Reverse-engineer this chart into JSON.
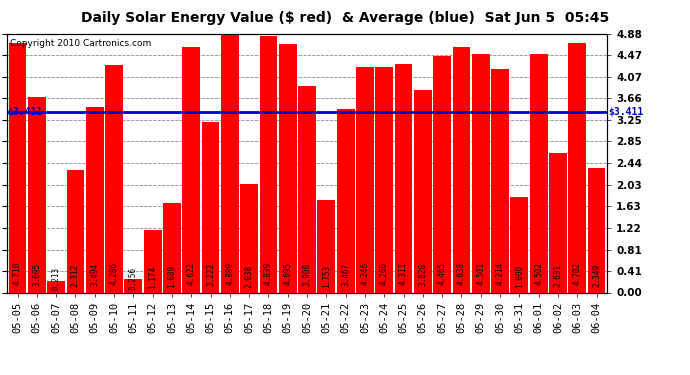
{
  "title": "Daily Solar Energy Value ($ red)  & Average (blue)  Sat Jun 5  05:45",
  "copyright": "Copyright 2010 Cartronics.com",
  "average": 3.411,
  "average_label": "$3.411",
  "categories": [
    "05-05",
    "05-06",
    "05-07",
    "05-08",
    "05-09",
    "05-10",
    "05-11",
    "05-12",
    "05-13",
    "05-14",
    "05-15",
    "05-16",
    "05-17",
    "05-18",
    "05-19",
    "05-20",
    "05-21",
    "05-22",
    "05-23",
    "05-24",
    "05-25",
    "05-26",
    "05-27",
    "05-28",
    "05-29",
    "05-30",
    "05-31",
    "06-01",
    "06-02",
    "06-03",
    "06-04"
  ],
  "values": [
    4.71,
    3.695,
    0.213,
    2.312,
    3.494,
    4.286,
    0.256,
    1.174,
    1.689,
    4.622,
    3.222,
    4.88,
    2.038,
    4.839,
    4.695,
    3.9,
    1.753,
    3.467,
    4.246,
    4.26,
    4.311,
    3.828,
    4.465,
    4.638,
    4.501,
    4.214,
    1.8,
    4.502,
    2.631,
    4.702,
    2.349
  ],
  "bar_color": "#ff0000",
  "line_color": "#0000cc",
  "bg_color": "#ffffff",
  "plot_bg_color": "#ffffff",
  "grid_color": "#888888",
  "bar_text_color": "#000000",
  "ylim": [
    0.0,
    4.88
  ],
  "yticks": [
    0.0,
    0.41,
    0.81,
    1.22,
    1.63,
    2.03,
    2.44,
    2.85,
    3.25,
    3.66,
    4.07,
    4.47,
    4.88
  ],
  "title_fontsize": 10,
  "tick_fontsize": 7.5,
  "bar_label_fontsize": 5.5,
  "copyright_fontsize": 6.5,
  "avg_label_fontsize": 7
}
